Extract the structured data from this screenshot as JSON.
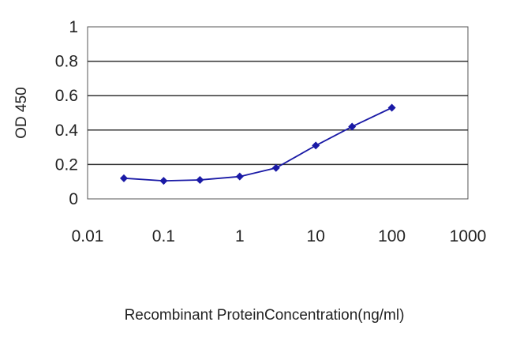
{
  "chart_data": {
    "type": "line",
    "xlabel": "Recombinant ProteinConcentration(ng/ml)",
    "ylabel": "OD 450",
    "xscale": "log",
    "xlim": [
      0.01,
      1000
    ],
    "ylim": [
      0,
      1
    ],
    "x_ticks": [
      "0.01",
      "0.1",
      "1",
      "10",
      "100",
      "1000"
    ],
    "y_ticks": [
      "0",
      "0.2",
      "0.4",
      "0.6",
      "0.8",
      "1"
    ],
    "grid": "horizontal",
    "legend": "none",
    "series": [
      {
        "x": [
          0.03,
          0.1,
          0.3,
          1,
          3,
          10,
          30,
          100
        ],
        "y": [
          0.12,
          0.105,
          0.11,
          0.13,
          0.18,
          0.31,
          0.42,
          0.53
        ],
        "color": "#1a1aa6",
        "marker": "diamond"
      }
    ]
  }
}
